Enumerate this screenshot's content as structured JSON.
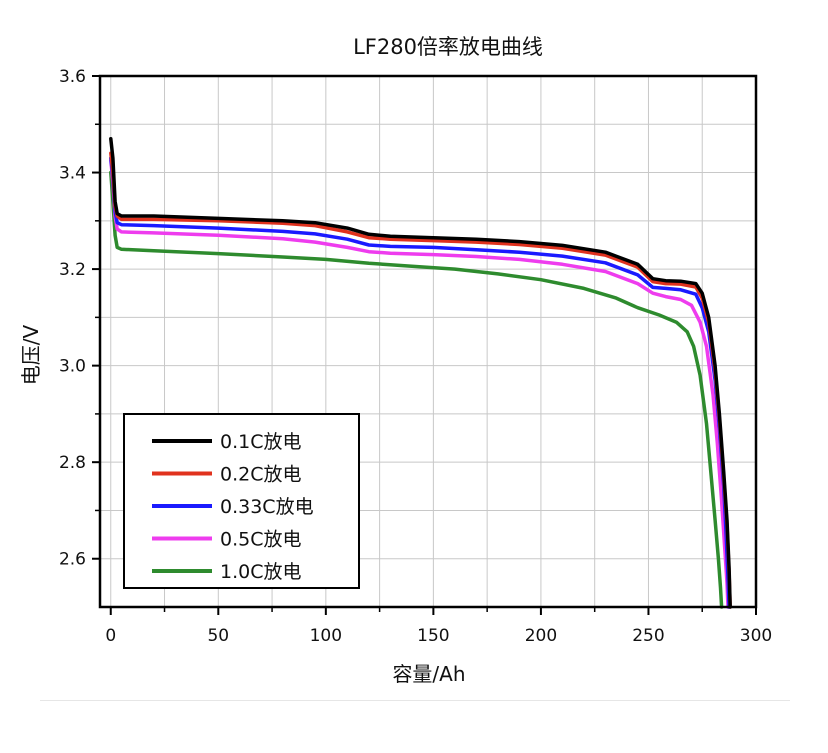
{
  "chart_data": {
    "type": "line",
    "title": "LF280倍率放电曲线",
    "xlabel": "容量/Ah",
    "ylabel": "电压/V",
    "xlim": [
      -5,
      300
    ],
    "ylim": [
      2.5,
      3.6
    ],
    "x_ticks": [
      "0",
      "50",
      "100",
      "150",
      "200",
      "250",
      "300"
    ],
    "y_ticks": [
      "2.6",
      "2.8",
      "3.0",
      "3.2",
      "3.4",
      "3.6"
    ],
    "grid": true,
    "legend_position": "bottom-left",
    "series": [
      {
        "name": "0.1C放电",
        "color": "#000000",
        "points": [
          [
            0,
            3.47
          ],
          [
            1,
            3.43
          ],
          [
            2,
            3.34
          ],
          [
            3,
            3.315
          ],
          [
            5,
            3.31
          ],
          [
            20,
            3.31
          ],
          [
            50,
            3.305
          ],
          [
            80,
            3.3
          ],
          [
            95,
            3.296
          ],
          [
            110,
            3.285
          ],
          [
            120,
            3.272
          ],
          [
            130,
            3.268
          ],
          [
            150,
            3.265
          ],
          [
            170,
            3.262
          ],
          [
            190,
            3.257
          ],
          [
            210,
            3.249
          ],
          [
            230,
            3.235
          ],
          [
            245,
            3.21
          ],
          [
            252,
            3.18
          ],
          [
            258,
            3.176
          ],
          [
            265,
            3.175
          ],
          [
            272,
            3.17
          ],
          [
            275,
            3.15
          ],
          [
            278,
            3.1
          ],
          [
            281,
            3.0
          ],
          [
            283,
            2.9
          ],
          [
            285,
            2.78
          ],
          [
            286.5,
            2.68
          ],
          [
            287.5,
            2.58
          ],
          [
            288,
            2.5
          ]
        ]
      },
      {
        "name": "0.2C放电",
        "color": "#e0321e",
        "points": [
          [
            0,
            3.44
          ],
          [
            1,
            3.4
          ],
          [
            2,
            3.33
          ],
          [
            3,
            3.31
          ],
          [
            5,
            3.303
          ],
          [
            20,
            3.303
          ],
          [
            50,
            3.3
          ],
          [
            80,
            3.295
          ],
          [
            95,
            3.29
          ],
          [
            110,
            3.277
          ],
          [
            120,
            3.265
          ],
          [
            130,
            3.262
          ],
          [
            150,
            3.259
          ],
          [
            170,
            3.256
          ],
          [
            190,
            3.251
          ],
          [
            210,
            3.243
          ],
          [
            230,
            3.229
          ],
          [
            245,
            3.204
          ],
          [
            252,
            3.174
          ],
          [
            258,
            3.17
          ],
          [
            265,
            3.169
          ],
          [
            272,
            3.163
          ],
          [
            275,
            3.14
          ],
          [
            278,
            3.09
          ],
          [
            281,
            2.99
          ],
          [
            283,
            2.89
          ],
          [
            285,
            2.77
          ],
          [
            286.5,
            2.67
          ],
          [
            287.5,
            2.57
          ],
          [
            288,
            2.5
          ]
        ]
      },
      {
        "name": "0.33C放电",
        "color": "#1a1aff",
        "points": [
          [
            0,
            3.43
          ],
          [
            1,
            3.39
          ],
          [
            2,
            3.32
          ],
          [
            3,
            3.296
          ],
          [
            5,
            3.292
          ],
          [
            20,
            3.29
          ],
          [
            50,
            3.285
          ],
          [
            80,
            3.278
          ],
          [
            95,
            3.273
          ],
          [
            110,
            3.262
          ],
          [
            120,
            3.25
          ],
          [
            130,
            3.247
          ],
          [
            150,
            3.245
          ],
          [
            170,
            3.24
          ],
          [
            190,
            3.235
          ],
          [
            210,
            3.227
          ],
          [
            230,
            3.213
          ],
          [
            245,
            3.188
          ],
          [
            252,
            3.162
          ],
          [
            258,
            3.16
          ],
          [
            265,
            3.157
          ],
          [
            272,
            3.148
          ],
          [
            275,
            3.12
          ],
          [
            278,
            3.07
          ],
          [
            281,
            2.97
          ],
          [
            283,
            2.87
          ],
          [
            285,
            2.75
          ],
          [
            286,
            2.66
          ],
          [
            287,
            2.56
          ],
          [
            287.5,
            2.5
          ]
        ]
      },
      {
        "name": "0.5C放电",
        "color": "#ee3cee",
        "points": [
          [
            0,
            3.425
          ],
          [
            1,
            3.38
          ],
          [
            2,
            3.31
          ],
          [
            3,
            3.283
          ],
          [
            5,
            3.277
          ],
          [
            20,
            3.275
          ],
          [
            50,
            3.27
          ],
          [
            80,
            3.263
          ],
          [
            95,
            3.256
          ],
          [
            110,
            3.245
          ],
          [
            120,
            3.236
          ],
          [
            130,
            3.233
          ],
          [
            150,
            3.23
          ],
          [
            170,
            3.226
          ],
          [
            190,
            3.22
          ],
          [
            210,
            3.21
          ],
          [
            230,
            3.195
          ],
          [
            245,
            3.17
          ],
          [
            252,
            3.15
          ],
          [
            258,
            3.143
          ],
          [
            265,
            3.137
          ],
          [
            270,
            3.125
          ],
          [
            274,
            3.09
          ],
          [
            277,
            3.04
          ],
          [
            280,
            2.94
          ],
          [
            282,
            2.84
          ],
          [
            284,
            2.72
          ],
          [
            285.5,
            2.62
          ],
          [
            286.5,
            2.55
          ],
          [
            287,
            2.5
          ]
        ]
      },
      {
        "name": "1.0C放电",
        "color": "#2e8b2e",
        "points": [
          [
            0,
            3.4
          ],
          [
            1,
            3.34
          ],
          [
            2,
            3.27
          ],
          [
            3,
            3.245
          ],
          [
            5,
            3.241
          ],
          [
            20,
            3.238
          ],
          [
            50,
            3.232
          ],
          [
            80,
            3.225
          ],
          [
            100,
            3.22
          ],
          [
            120,
            3.212
          ],
          [
            140,
            3.206
          ],
          [
            160,
            3.2
          ],
          [
            180,
            3.19
          ],
          [
            200,
            3.178
          ],
          [
            220,
            3.16
          ],
          [
            235,
            3.14
          ],
          [
            245,
            3.12
          ],
          [
            255,
            3.105
          ],
          [
            263,
            3.09
          ],
          [
            268,
            3.07
          ],
          [
            271,
            3.04
          ],
          [
            274,
            2.98
          ],
          [
            277,
            2.88
          ],
          [
            279,
            2.78
          ],
          [
            281,
            2.68
          ],
          [
            282.5,
            2.6
          ],
          [
            283.5,
            2.54
          ],
          [
            284,
            2.5
          ]
        ]
      }
    ]
  }
}
